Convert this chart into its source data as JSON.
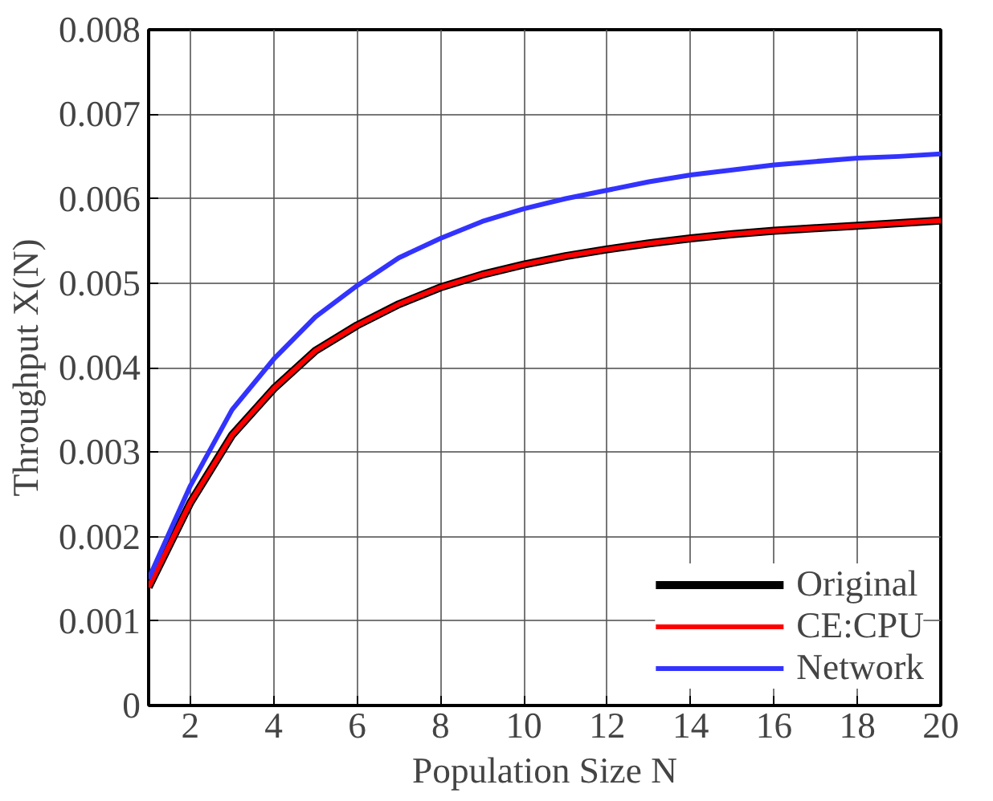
{
  "chart_data": {
    "type": "line",
    "xlabel": "Population Size N",
    "ylabel": "Throughput X(N)",
    "x": [
      1,
      2,
      3,
      4,
      5,
      6,
      7,
      8,
      9,
      10,
      11,
      12,
      13,
      14,
      15,
      16,
      17,
      18,
      19,
      20
    ],
    "xlim": [
      1,
      20
    ],
    "xticks": [
      2,
      4,
      6,
      8,
      10,
      12,
      14,
      16,
      18,
      20
    ],
    "ylim": [
      0,
      0.008
    ],
    "yticks": [
      {
        "value": 0,
        "label": "0"
      },
      0.001,
      0.002,
      0.003,
      0.004,
      0.005,
      0.006,
      0.007,
      0.008
    ],
    "grid": true,
    "legend": "bottom right",
    "line_style": "solid",
    "series": [
      {
        "name": "Original",
        "color": "#000000",
        "values": [
          0.0014,
          0.0024,
          0.0032,
          0.00375,
          0.0042,
          0.0045,
          0.00475,
          0.00495,
          0.0051,
          0.00522,
          0.00532,
          0.0054,
          0.00547,
          0.00553,
          0.00558,
          0.00562,
          0.00565,
          0.00568,
          0.00571,
          0.00574
        ]
      },
      {
        "name": "CE:CPU",
        "color": "#ff0000",
        "values": [
          0.0014,
          0.0024,
          0.0032,
          0.00375,
          0.0042,
          0.0045,
          0.00475,
          0.00495,
          0.0051,
          0.00522,
          0.00532,
          0.0054,
          0.00547,
          0.00553,
          0.00558,
          0.00562,
          0.00565,
          0.00568,
          0.00571,
          0.00574
        ]
      },
      {
        "name": "Network",
        "color": "#3333ff",
        "values": [
          0.0015,
          0.0026,
          0.0035,
          0.0041,
          0.0046,
          0.00497,
          0.0053,
          0.00553,
          0.00573,
          0.00588,
          0.006,
          0.0061,
          0.0062,
          0.00628,
          0.00634,
          0.0064,
          0.00644,
          0.00648,
          0.0065,
          0.00653
        ]
      }
    ]
  }
}
